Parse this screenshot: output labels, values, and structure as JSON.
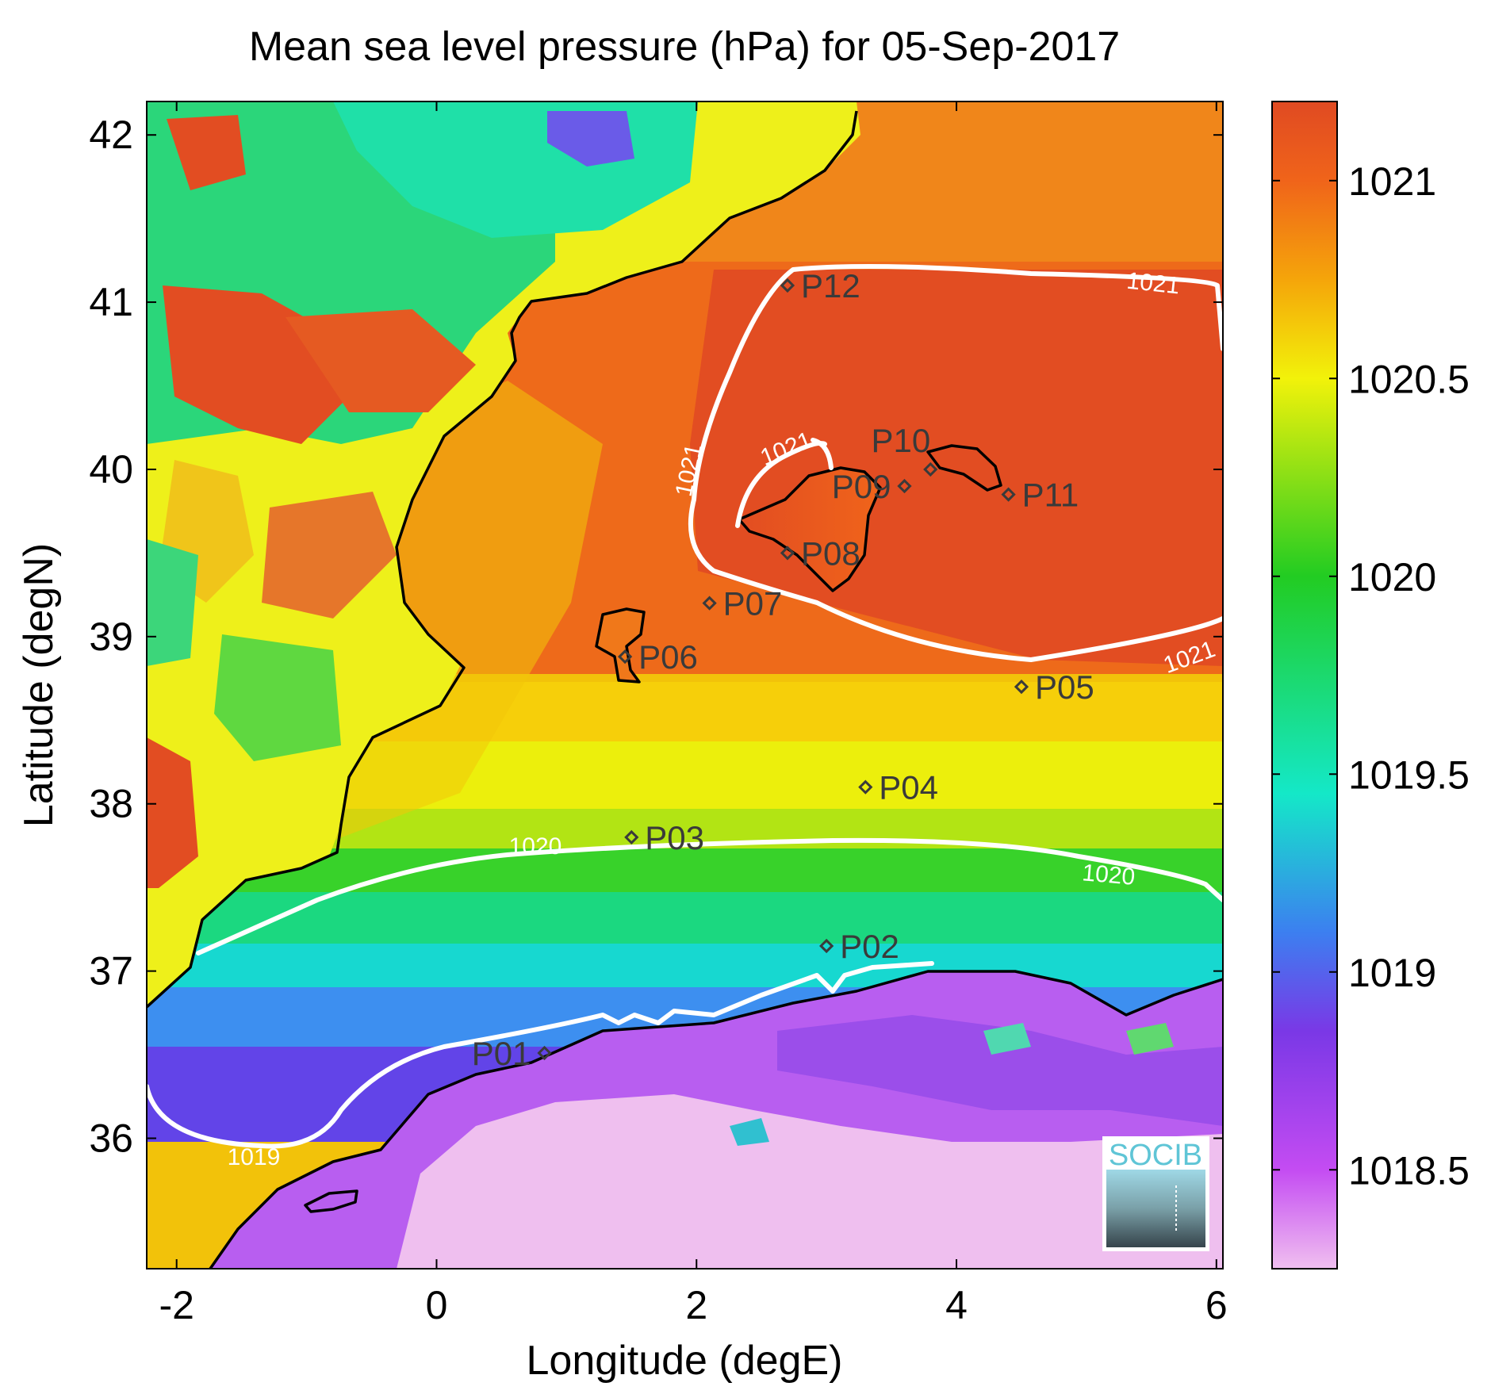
{
  "title": "Mean sea level pressure (hPa) for 05-Sep-2017",
  "x_axis": {
    "label": "Longitude (degE)",
    "ticks": [
      {
        "value": -2,
        "label": "-2"
      },
      {
        "value": 0,
        "label": "0"
      },
      {
        "value": 2,
        "label": "2"
      },
      {
        "value": 4,
        "label": "4"
      },
      {
        "value": 6,
        "label": "6"
      }
    ]
  },
  "y_axis": {
    "label": "Latitude (degN)",
    "ticks": [
      {
        "value": 36,
        "label": "36"
      },
      {
        "value": 37,
        "label": "37"
      },
      {
        "value": 38,
        "label": "38"
      },
      {
        "value": 39,
        "label": "39"
      },
      {
        "value": 40,
        "label": "40"
      },
      {
        "value": 41,
        "label": "41"
      },
      {
        "value": 42,
        "label": "42"
      }
    ]
  },
  "colorbar": {
    "min": 1018.25,
    "max": 1021.2,
    "ticks": [
      {
        "value": 1018.5,
        "label": "1018.5"
      },
      {
        "value": 1019,
        "label": "1019"
      },
      {
        "value": 1019.5,
        "label": "1019.5"
      },
      {
        "value": 1020,
        "label": "1020"
      },
      {
        "value": 1020.5,
        "label": "1020.5"
      },
      {
        "value": 1021,
        "label": "1021"
      }
    ],
    "colors": [
      {
        "value": 1018.25,
        "color": "#f0bff0"
      },
      {
        "value": 1018.5,
        "color": "#c44cf2"
      },
      {
        "value": 1018.85,
        "color": "#7a38e6"
      },
      {
        "value": 1019.1,
        "color": "#3c7ff0"
      },
      {
        "value": 1019.45,
        "color": "#14e8c8"
      },
      {
        "value": 1020,
        "color": "#22cc22"
      },
      {
        "value": 1020.5,
        "color": "#f2f20a"
      },
      {
        "value": 1020.75,
        "color": "#f5a50a"
      },
      {
        "value": 1021,
        "color": "#f0641a"
      },
      {
        "value": 1021.2,
        "color": "#e04a22"
      }
    ]
  },
  "points": [
    {
      "label": "P01",
      "lon": 0.83,
      "lat": 36.51
    },
    {
      "label": "P02",
      "lon": 3.0,
      "lat": 37.15
    },
    {
      "label": "P03",
      "lon": 1.5,
      "lat": 37.8
    },
    {
      "label": "P04",
      "lon": 3.3,
      "lat": 38.1
    },
    {
      "label": "P05",
      "lon": 4.5,
      "lat": 38.7
    },
    {
      "label": "P06",
      "lon": 1.45,
      "lat": 38.88
    },
    {
      "label": "P07",
      "lon": 2.1,
      "lat": 39.2
    },
    {
      "label": "P08",
      "lon": 2.7,
      "lat": 39.5
    },
    {
      "label": "P09",
      "lon": 3.6,
      "lat": 39.9
    },
    {
      "label": "P10",
      "lon": 3.8,
      "lat": 40.0
    },
    {
      "label": "P11",
      "lon": 4.4,
      "lat": 39.85
    },
    {
      "label": "P12",
      "lon": 2.7,
      "lat": 41.1
    }
  ],
  "contour_labels": [
    "1019",
    "1020",
    "1020",
    "1021",
    "1021",
    "1021",
    "1021"
  ],
  "logo": "SOCIB"
}
